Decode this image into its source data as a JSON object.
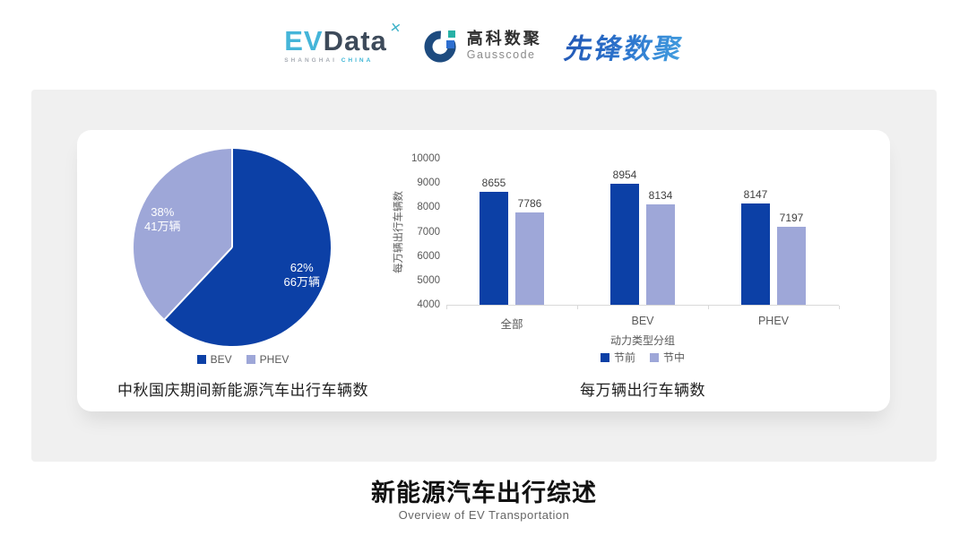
{
  "header": {
    "evdata": {
      "ev": "EV",
      "data": "Data",
      "spark_glyph": "✕",
      "sub_left": "SHANGHAI",
      "sub_right": "CHINA"
    },
    "gausscode": {
      "cn_name": "高科数聚",
      "en_name": "Gausscode"
    },
    "xianfeng": {
      "text": "先锋数聚"
    }
  },
  "colors": {
    "series_dark_blue": "#0c40a6",
    "series_light_purple": "#9ea7d8",
    "panel_gray": "#f0f0f0",
    "axis_line": "#d9d9d9",
    "axis_text": "#595959",
    "value_text": "#3f3f3f"
  },
  "chart_data": [
    {
      "type": "pie",
      "title": "中秋国庆期间新能源汽车出行车辆数",
      "slices": [
        {
          "label": "BEV",
          "percent": 62,
          "volume_label": "66万辆",
          "color": "#0c40a6"
        },
        {
          "label": "PHEV",
          "percent": 38,
          "volume_label": "41万辆",
          "color": "#9ea7d8"
        }
      ],
      "legend_position": "bottom",
      "start_angle_deg": 0,
      "direction": "clockwise"
    },
    {
      "type": "bar",
      "title": "每万辆出行车辆数",
      "categories": [
        "全部",
        "BEV",
        "PHEV"
      ],
      "series": [
        {
          "name": "节前",
          "color": "#0c40a6",
          "values": [
            8655,
            8954,
            8147
          ]
        },
        {
          "name": "节中",
          "color": "#9ea7d8",
          "values": [
            7786,
            8134,
            7197
          ]
        }
      ],
      "xlabel": "动力类型分组",
      "ylabel": "每万辆出行车辆数",
      "ylim": [
        4000,
        10000
      ],
      "ytick_step": 1000,
      "grid": false,
      "legend_position": "bottom",
      "value_labels": true
    }
  ],
  "footer": {
    "title": "新能源汽车出行综述",
    "subtitle": "Overview of EV Transportation"
  }
}
